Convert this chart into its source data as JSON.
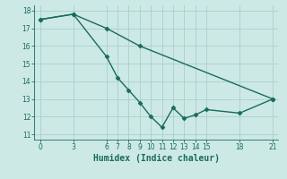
{
  "title": "",
  "xlabel": "Humidex (Indice chaleur)",
  "ylabel": "",
  "background_color": "#cce9e5",
  "line_color": "#1a6b5a",
  "grid_color": "#aacfcc",
  "line1_x": [
    0,
    3,
    6,
    7,
    8,
    9,
    10,
    11,
    12,
    13,
    14,
    15,
    18,
    21
  ],
  "line1_y": [
    17.5,
    17.8,
    15.4,
    14.2,
    13.5,
    12.8,
    12.0,
    11.4,
    12.5,
    11.9,
    12.1,
    12.4,
    12.2,
    13.0
  ],
  "line2_x": [
    0,
    3,
    6,
    9,
    21
  ],
  "line2_y": [
    17.5,
    17.8,
    17.0,
    16.0,
    13.0
  ],
  "xlim": [
    -0.5,
    21.5
  ],
  "ylim": [
    10.7,
    18.3
  ],
  "xticks": [
    0,
    3,
    6,
    7,
    8,
    9,
    10,
    11,
    12,
    13,
    14,
    15,
    18,
    21
  ],
  "yticks": [
    11,
    12,
    13,
    14,
    15,
    16,
    17,
    18
  ],
  "marker": "D",
  "markersize": 2.5,
  "linewidth": 1.0,
  "tick_fontsize": 5.5,
  "xlabel_fontsize": 7.0
}
